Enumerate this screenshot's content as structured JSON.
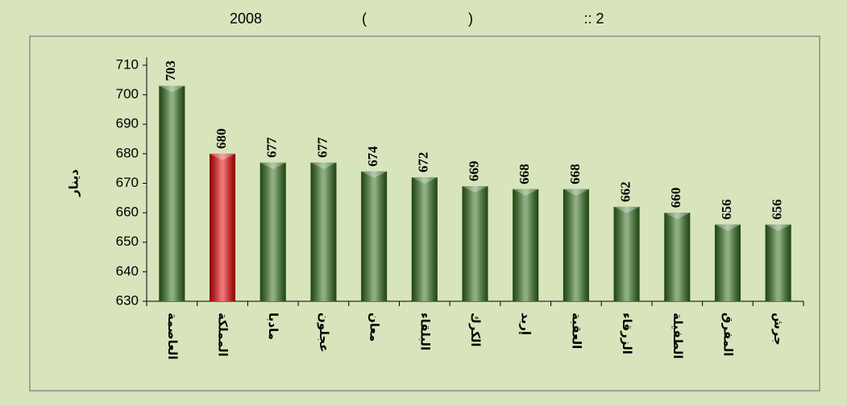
{
  "chart_data": {
    "type": "bar",
    "title_parts": [
      "2008",
      "(",
      ")",
      ":: 2"
    ],
    "y_label": "دينار",
    "categories": [
      "العاصمة",
      "المملكة",
      "مادبا",
      "عجلون",
      "معان",
      "البلقاء",
      "الكرك",
      "إربد",
      "العقبة",
      "الزرقاء",
      "الطفيلة",
      "المفرق",
      "جرش"
    ],
    "values": [
      703,
      680,
      677,
      677,
      674,
      672,
      669,
      668,
      668,
      662,
      660,
      656,
      656
    ],
    "colors": [
      "#2f6b1a",
      "#e00000",
      "#2f6b1a",
      "#2f6b1a",
      "#2f6b1a",
      "#2f6b1a",
      "#2f6b1a",
      "#2f6b1a",
      "#2f6b1a",
      "#2f6b1a",
      "#2f6b1a",
      "#2f6b1a",
      "#2f6b1a"
    ],
    "ylim": [
      630,
      710
    ],
    "yticks": [
      630,
      640,
      650,
      660,
      670,
      680,
      690,
      700,
      710
    ]
  }
}
